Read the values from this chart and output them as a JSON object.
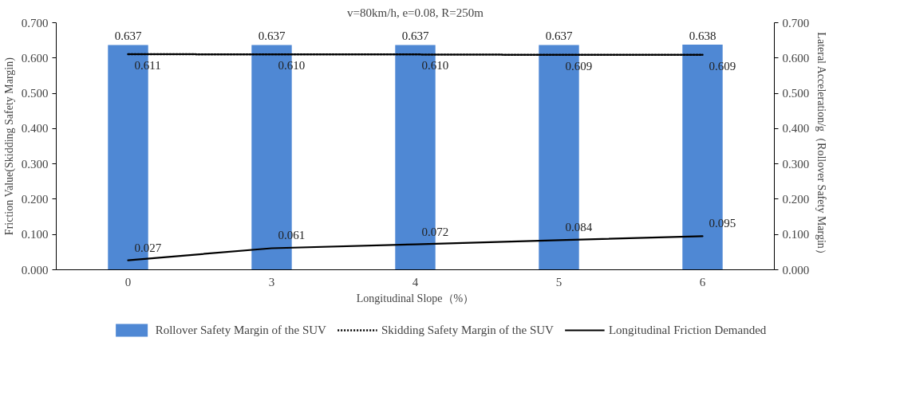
{
  "chart_data": {
    "type": "bar",
    "title": "v=80km/h, e=0.08, R=250m",
    "xlabel": "Longitudinal Slope（%）",
    "ylabel": "Friction Value(Skidding Safety Margin)",
    "y2label": "Lateral Acceleration/g（Rollover Safety Margin）",
    "categories": [
      "0",
      "3",
      "4",
      "5",
      "6"
    ],
    "series": [
      {
        "name": "Rollover Safety Margin of the SUV",
        "color": "#4f88d4",
        "values": [
          0.637,
          0.637,
          0.637,
          0.637,
          0.638
        ],
        "value_labels": [
          "0.637",
          "0.637",
          "0.637",
          "0.637",
          "0.638"
        ]
      },
      {
        "name": "Skidding Safety Margin of the SUV",
        "type": "line",
        "line_style": "dotted",
        "color": "#000000",
        "values": [
          0.611,
          0.61,
          0.61,
          0.609,
          0.609
        ],
        "value_labels": [
          "0.611",
          "0.610",
          "0.610",
          "0.609",
          "0.609"
        ]
      },
      {
        "name": "Longitudinal Friction Demanded",
        "type": "line",
        "line_style": "solid",
        "color": "#000000",
        "values": [
          0.027,
          0.061,
          0.072,
          0.084,
          0.095
        ],
        "value_labels": [
          "0.027",
          "0.061",
          "0.072",
          "0.084",
          "0.095"
        ]
      }
    ],
    "ylim": [
      0,
      0.7
    ],
    "yticks": [
      {
        "value": 0,
        "label": "0.000"
      },
      {
        "value": 0.1,
        "label": "0.100"
      },
      {
        "value": 0.2,
        "label": "0.200"
      },
      {
        "value": 0.3,
        "label": "0.300"
      },
      {
        "value": 0.4,
        "label": "0.400"
      },
      {
        "value": 0.5,
        "label": "0.500"
      },
      {
        "value": 0.6,
        "label": "0.600"
      },
      {
        "value": 0.7,
        "label": "0.700"
      }
    ],
    "y2lim": [
      0,
      0.7
    ],
    "y2ticks": [
      {
        "value": 0,
        "label": "0.000"
      },
      {
        "value": 0.1,
        "label": "0.100"
      },
      {
        "value": 0.2,
        "label": "0.200"
      },
      {
        "value": 0.3,
        "label": "0.300"
      },
      {
        "value": 0.4,
        "label": "0.400"
      },
      {
        "value": 0.5,
        "label": "0.500"
      },
      {
        "value": 0.6,
        "label": "0.600"
      },
      {
        "value": 0.7,
        "label": "0.700"
      }
    ],
    "grid": false,
    "legend": "bottom"
  }
}
